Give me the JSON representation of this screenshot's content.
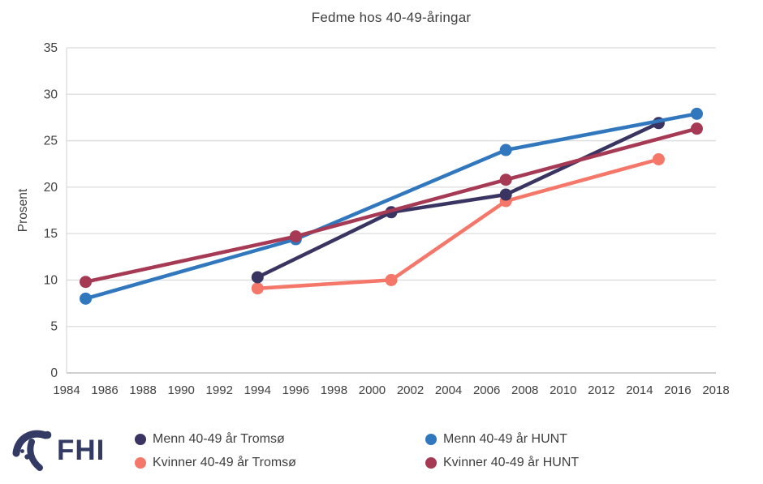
{
  "title": "Fedme hos 40-49-åringar",
  "colors": {
    "menn_tromso": "#3A3462",
    "kvinner_tromso": "#F4776A",
    "menn_hunt": "#3077BE",
    "kvinner_hunt": "#A63A55",
    "grid": "#DCDCDC",
    "axis_line": "#BFBFBF",
    "axis_text": "#404040",
    "logo": "#333A63"
  },
  "chart_data": {
    "type": "line",
    "title": "Fedme hos 40-49-åringar",
    "xlabel": "",
    "ylabel": "Prosent",
    "xlim": [
      1984,
      2018
    ],
    "ylim": [
      0,
      35
    ],
    "x_ticks": [
      1984,
      1986,
      1988,
      1990,
      1992,
      1994,
      1996,
      1998,
      2000,
      2002,
      2004,
      2006,
      2008,
      2010,
      2012,
      2014,
      2016,
      2018
    ],
    "y_ticks": [
      0,
      5,
      10,
      15,
      20,
      25,
      30,
      35
    ],
    "grid": "horizontal",
    "legend_position": "bottom",
    "marker": "circle",
    "series": [
      {
        "name": "Menn 40-49 år Tromsø",
        "color_key": "menn_tromso",
        "points": [
          [
            1994,
            10.3
          ],
          [
            2001,
            17.3
          ],
          [
            2007,
            19.2
          ],
          [
            2015,
            26.9
          ]
        ]
      },
      {
        "name": "Kvinner 40-49 år Tromsø",
        "color_key": "kvinner_tromso",
        "points": [
          [
            1994,
            9.1
          ],
          [
            2001,
            10.0
          ],
          [
            2007,
            18.5
          ],
          [
            2015,
            23.0
          ]
        ]
      },
      {
        "name": "Menn 40-49 år HUNT",
        "color_key": "menn_hunt",
        "points": [
          [
            1985,
            8.0
          ],
          [
            1996,
            14.4
          ],
          [
            2007,
            24.0
          ],
          [
            2017,
            27.9
          ]
        ]
      },
      {
        "name": "Kvinner 40-49 år HUNT",
        "color_key": "kvinner_hunt",
        "points": [
          [
            1985,
            9.8
          ],
          [
            1996,
            14.7
          ],
          [
            2007,
            20.8
          ],
          [
            2017,
            26.3
          ]
        ]
      }
    ],
    "draw_order": [
      1,
      0,
      2,
      3
    ]
  },
  "legend": {
    "col1": [
      {
        "label": "Menn 40-49 år Tromsø",
        "color_key": "menn_tromso"
      },
      {
        "label": "Kvinner 40-49 år Tromsø",
        "color_key": "kvinner_tromso"
      }
    ],
    "col2": [
      {
        "label": "Menn 40-49 år HUNT",
        "color_key": "menn_hunt"
      },
      {
        "label": "Kvinner 40-49 år HUNT",
        "color_key": "kvinner_hunt"
      }
    ]
  },
  "logo": {
    "text": "FHI"
  }
}
